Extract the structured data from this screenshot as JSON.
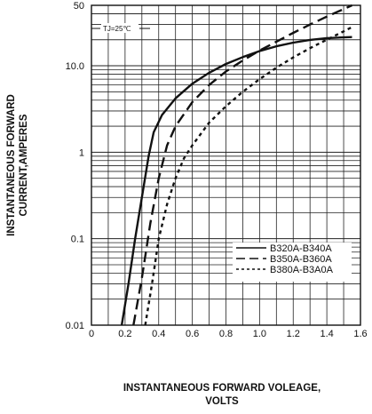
{
  "chart_data": {
    "type": "line",
    "xlabel_line1": "INSTANTANEOUS FORWARD VOLEAGE,",
    "xlabel_line2": "VOLTS",
    "ylabel_line1": "INSTANTANEOUS FORWARD",
    "ylabel_line2": "CURRENT,AMPERES",
    "xlim": [
      0,
      1.6
    ],
    "ylim": [
      0.01,
      50
    ],
    "y_scale": "log",
    "grid": true,
    "legend_position": "lower-right",
    "x_ticks": [
      "0",
      "0.2",
      "0.4",
      "0.6",
      "0.8",
      "1.0",
      "1.2",
      "1.4",
      "1.6"
    ],
    "y_ticks": [
      {
        "value": 50,
        "label": "50"
      },
      {
        "value": 10,
        "label": "10.0"
      },
      {
        "value": 1,
        "label": "1"
      },
      {
        "value": 0.1,
        "label": "0.1"
      },
      {
        "value": 0.01,
        "label": "0.01"
      }
    ],
    "annotation": "TJ=25℃",
    "series": [
      {
        "name": "B320A-B340A",
        "dash": "solid",
        "x": [
          0.18,
          0.22,
          0.26,
          0.3,
          0.34,
          0.37,
          0.42,
          0.5,
          0.6,
          0.7,
          0.8,
          0.9,
          1.0,
          1.1,
          1.2,
          1.3,
          1.4,
          1.55
        ],
        "y": [
          0.01,
          0.03,
          0.1,
          0.3,
          0.9,
          1.7,
          2.7,
          4.2,
          6.2,
          8.3,
          10.5,
          12.6,
          14.8,
          16.8,
          18.5,
          19.9,
          20.9,
          21.5
        ]
      },
      {
        "name": "B350A-B360A",
        "dash": "dashed",
        "x": [
          0.25,
          0.3,
          0.35,
          0.4,
          0.45,
          0.5,
          0.6,
          0.7,
          0.8,
          0.9,
          1.0,
          1.1,
          1.2,
          1.3,
          1.4,
          1.55
        ],
        "y": [
          0.01,
          0.035,
          0.15,
          0.5,
          1.2,
          2.0,
          3.8,
          6.0,
          8.6,
          11.5,
          15.0,
          19.0,
          24.0,
          30.0,
          37.0,
          50.0
        ]
      },
      {
        "name": "B380A-B3A0A",
        "dash": "dotted",
        "x": [
          0.32,
          0.36,
          0.4,
          0.45,
          0.5,
          0.55,
          0.6,
          0.7,
          0.8,
          0.9,
          1.0,
          1.1,
          1.2,
          1.3,
          1.4,
          1.5,
          1.55
        ],
        "y": [
          0.01,
          0.03,
          0.1,
          0.25,
          0.5,
          0.85,
          1.2,
          2.2,
          3.4,
          5.0,
          7.0,
          9.5,
          12.5,
          16.0,
          20.0,
          25.0,
          28.0
        ]
      }
    ]
  }
}
